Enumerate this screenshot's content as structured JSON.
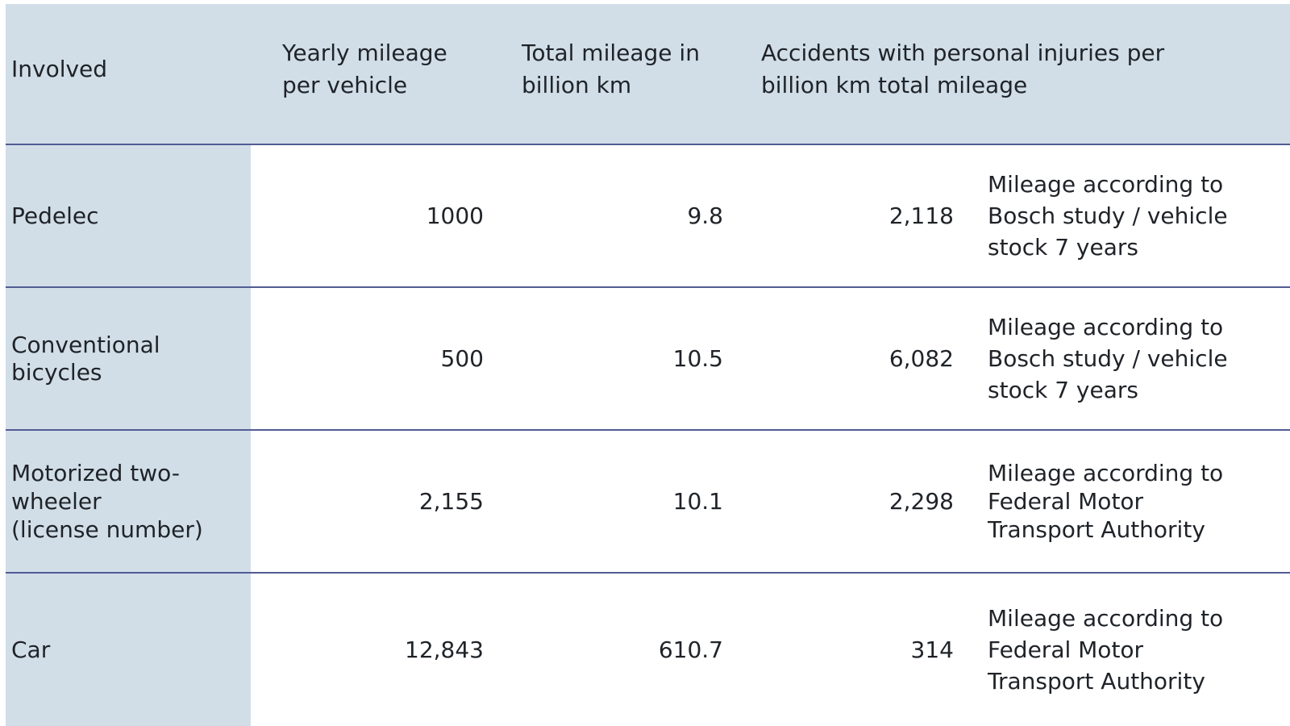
{
  "table": {
    "headers": {
      "involved": "Involved",
      "yearly": "Yearly mileage\nper vehicle",
      "total": "Total mileage in\nbillion km",
      "accidents": "Accidents with personal injuries per\nbillion km total mileage"
    },
    "rows": [
      {
        "involved": "Pedelec",
        "yearly": "1000",
        "total": "9.8",
        "accidents": "2,118",
        "note": "Mileage according to\nBosch study / vehicle\nstock 7 years"
      },
      {
        "involved": "Conventional\nbicycles",
        "yearly": "500",
        "total": "10.5",
        "accidents": "6,082",
        "note": "Mileage according to\nBosch study / vehicle\nstock 7 years"
      },
      {
        "involved": "Motorized two-\nwheeler\n(license number)",
        "yearly": "2,155",
        "total": "10.1",
        "accidents": "2,298",
        "note": "Mileage according to\nFederal Motor\nTransport Authority"
      },
      {
        "involved": "Car",
        "yearly": "12,843",
        "total": "610.7",
        "accidents": "314",
        "note": "Mileage according to\nFederal Motor\nTransport Authority"
      }
    ]
  },
  "colors": {
    "header_bg": "#d1dee8",
    "rule": "#515c93",
    "text": "#1f2328"
  }
}
